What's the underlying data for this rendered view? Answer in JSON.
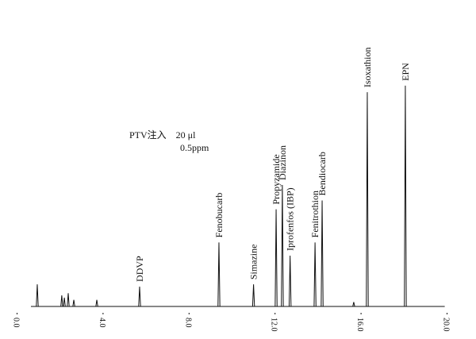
{
  "chart_data": {
    "type": "chromatogram",
    "annotations": [
      "PTV注入　20 μl",
      "0.5ppm"
    ],
    "peaks": [
      {
        "label": null,
        "x": 0.94,
        "height": 10
      },
      {
        "label": null,
        "x": 2.08,
        "height": 5
      },
      {
        "label": null,
        "x": 2.2,
        "height": 4
      },
      {
        "label": null,
        "x": 2.38,
        "height": 6
      },
      {
        "label": null,
        "x": 2.64,
        "height": 3
      },
      {
        "label": null,
        "x": 3.71,
        "height": 3
      },
      {
        "label": "DDVP",
        "x": 5.7,
        "height": 9
      },
      {
        "label": "Fenobucarb",
        "x": 9.39,
        "height": 29
      },
      {
        "label": "Simazine",
        "x": 11.0,
        "height": 10
      },
      {
        "label": "Propyzamide",
        "x": 12.05,
        "height": 44
      },
      {
        "label": "Diazinon",
        "x": 12.34,
        "height": 55
      },
      {
        "label": "Iprofenfos (IBP)",
        "x": 12.7,
        "height": 23
      },
      {
        "label": "Fenitrothion",
        "x": 13.86,
        "height": 29
      },
      {
        "label": "Bendiocarb",
        "x": 14.19,
        "height": 48
      },
      {
        "label": null,
        "x": 15.66,
        "height": 2
      },
      {
        "label": "Isoxathion",
        "x": 16.29,
        "height": 97
      },
      {
        "label": "EPN",
        "x": 18.06,
        "height": 100
      }
    ],
    "xlim": [
      0,
      21
    ],
    "xticks": [
      {
        "value": 0,
        "label": "0.0"
      },
      {
        "value": 4,
        "label": "4.0"
      },
      {
        "value": 8,
        "label": "8.0"
      },
      {
        "value": 12,
        "label": "12.0"
      },
      {
        "value": 16,
        "label": "16.0"
      },
      {
        "value": 20,
        "label": "20.0"
      }
    ],
    "ylim": [
      0,
      110
    ],
    "color": "#111111"
  }
}
